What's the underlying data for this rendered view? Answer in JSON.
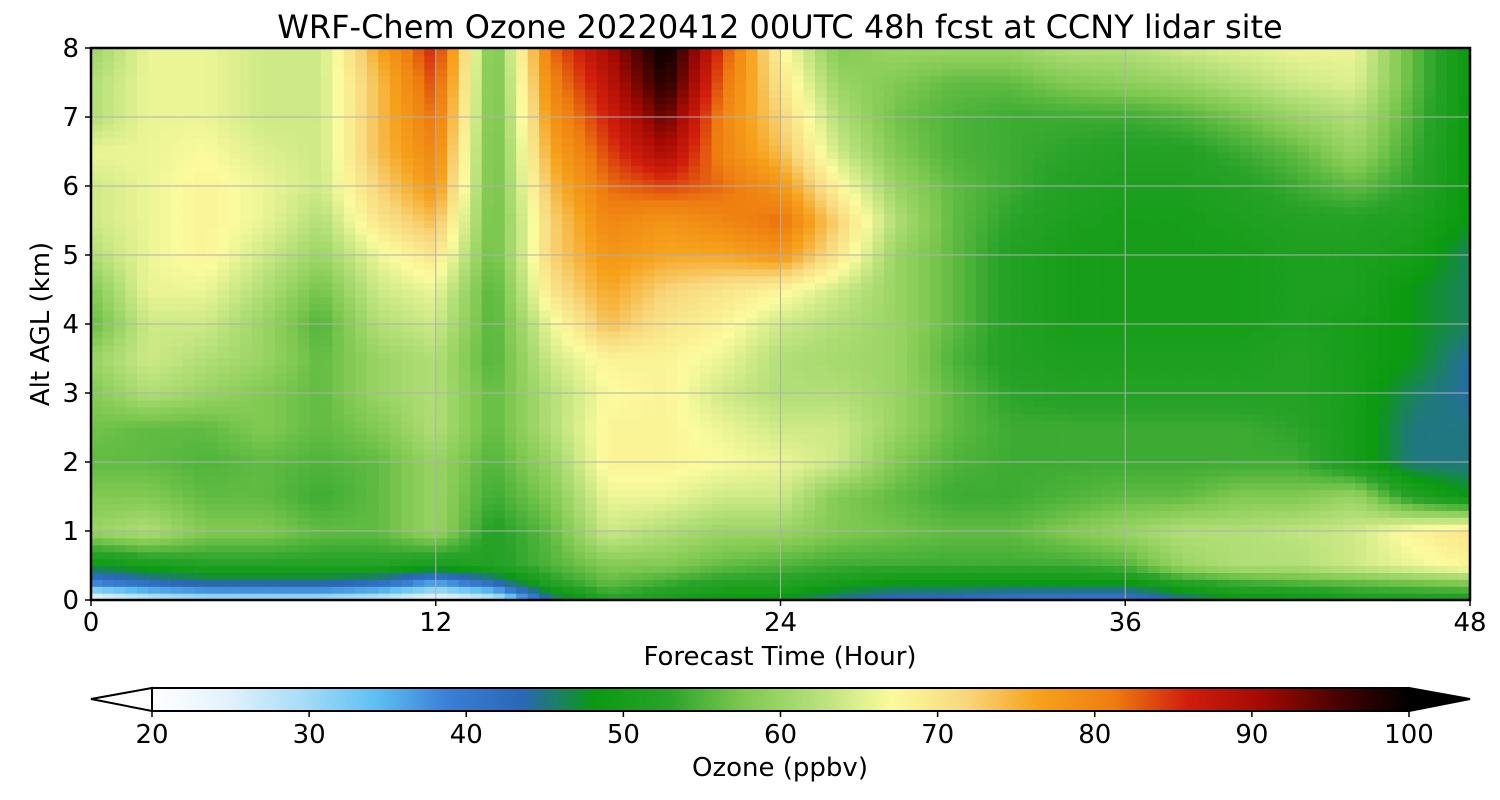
{
  "chart_data": {
    "type": "heatmap",
    "title": "WRF-Chem Ozone  20220412 00UTC 48h fcst at CCNY lidar site",
    "xlabel": "Forecast Time (Hour)",
    "ylabel": "Alt AGL (km)",
    "xlim": [
      0,
      48
    ],
    "ylim": [
      0,
      8
    ],
    "x_ticks": [
      "0",
      "12",
      "24",
      "36",
      "48"
    ],
    "y_ticks": [
      "0",
      "1",
      "2",
      "3",
      "4",
      "5",
      "6",
      "7",
      "8"
    ],
    "grid": true,
    "x": [
      0,
      2,
      4,
      6,
      8,
      10,
      12,
      14,
      16,
      18,
      20,
      22,
      24,
      26,
      28,
      30,
      32,
      34,
      36,
      38,
      40,
      42,
      44,
      46,
      48
    ],
    "y": [
      0,
      0.25,
      0.5,
      1,
      1.5,
      2,
      2.5,
      3,
      3.5,
      4,
      4.5,
      5,
      5.5,
      6,
      6.5,
      7,
      7.5,
      8
    ],
    "z": [
      [
        22,
        26,
        28,
        28,
        28,
        26,
        22,
        26,
        44,
        52,
        50,
        48,
        48,
        44,
        42,
        42,
        40,
        40,
        40,
        44,
        48,
        48,
        50,
        50,
        50
      ],
      [
        38,
        42,
        44,
        44,
        44,
        42,
        36,
        42,
        52,
        56,
        54,
        52,
        52,
        50,
        48,
        48,
        48,
        48,
        48,
        52,
        54,
        55,
        56,
        57,
        58
      ],
      [
        48,
        50,
        52,
        52,
        52,
        52,
        50,
        52,
        55,
        58,
        58,
        56,
        55,
        54,
        54,
        54,
        54,
        54,
        55,
        60,
        62,
        62,
        64,
        66,
        68
      ],
      [
        60,
        62,
        58,
        58,
        56,
        56,
        60,
        52,
        56,
        64,
        62,
        60,
        60,
        58,
        57,
        56,
        56,
        58,
        60,
        62,
        62,
        63,
        64,
        68,
        70
      ],
      [
        58,
        58,
        56,
        56,
        54,
        56,
        60,
        54,
        58,
        66,
        66,
        64,
        64,
        58,
        56,
        54,
        54,
        55,
        56,
        56,
        58,
        58,
        60,
        52,
        48
      ],
      [
        56,
        56,
        55,
        56,
        55,
        56,
        60,
        55,
        60,
        68,
        68,
        67,
        66,
        64,
        58,
        55,
        54,
        54,
        54,
        54,
        54,
        54,
        50,
        45,
        45
      ],
      [
        57,
        56,
        56,
        58,
        56,
        58,
        62,
        56,
        62,
        68,
        68,
        66,
        64,
        64,
        60,
        56,
        54,
        54,
        54,
        54,
        54,
        53,
        50,
        45,
        45
      ],
      [
        58,
        62,
        60,
        58,
        56,
        60,
        62,
        56,
        62,
        67,
        68,
        64,
        62,
        62,
        60,
        56,
        53,
        52,
        52,
        52,
        52,
        52,
        50,
        46,
        44
      ],
      [
        60,
        64,
        62,
        60,
        56,
        60,
        62,
        55,
        64,
        68,
        68,
        66,
        62,
        61,
        60,
        55,
        52,
        51,
        51,
        51,
        51,
        52,
        50,
        48,
        44
      ],
      [
        56,
        64,
        64,
        60,
        55,
        62,
        64,
        55,
        66,
        74,
        70,
        68,
        64,
        62,
        60,
        56,
        52,
        50,
        50,
        50,
        50,
        51,
        50,
        48,
        46
      ],
      [
        58,
        66,
        66,
        62,
        57,
        64,
        66,
        55,
        70,
        76,
        72,
        70,
        68,
        64,
        60,
        56,
        52,
        50,
        50,
        50,
        50,
        51,
        51,
        48,
        46
      ],
      [
        62,
        66,
        68,
        64,
        60,
        66,
        70,
        56,
        72,
        78,
        76,
        76,
        78,
        70,
        60,
        56,
        52,
        50,
        50,
        50,
        50,
        51,
        51,
        50,
        46
      ],
      [
        64,
        66,
        68,
        66,
        62,
        70,
        74,
        56,
        72,
        80,
        78,
        80,
        82,
        72,
        62,
        56,
        53,
        51,
        50,
        50,
        51,
        52,
        52,
        51,
        48
      ],
      [
        64,
        66,
        68,
        66,
        64,
        72,
        78,
        56,
        74,
        82,
        84,
        82,
        78,
        68,
        60,
        56,
        54,
        52,
        51,
        51,
        52,
        54,
        56,
        53,
        48
      ],
      [
        66,
        66,
        67,
        65,
        64,
        74,
        80,
        56,
        76,
        84,
        90,
        80,
        74,
        64,
        58,
        55,
        54,
        53,
        52,
        52,
        54,
        56,
        60,
        54,
        48
      ],
      [
        62,
        66,
        66,
        64,
        64,
        74,
        82,
        56,
        78,
        86,
        94,
        80,
        72,
        62,
        57,
        55,
        54,
        54,
        54,
        55,
        57,
        60,
        62,
        55,
        48
      ],
      [
        62,
        66,
        66,
        64,
        64,
        74,
        84,
        56,
        80,
        88,
        98,
        82,
        70,
        60,
        58,
        56,
        56,
        58,
        59,
        60,
        62,
        64,
        65,
        56,
        48
      ],
      [
        60,
        66,
        66,
        64,
        64,
        76,
        86,
        56,
        82,
        90,
        100,
        84,
        68,
        58,
        60,
        60,
        60,
        62,
        62,
        64,
        65,
        66,
        66,
        56,
        48
      ]
    ],
    "colorbar": {
      "label": "Ozone  (ppbv)",
      "min": 20,
      "max": 100,
      "ticks": [
        "20",
        "30",
        "40",
        "50",
        "60",
        "70",
        "80",
        "90",
        "100"
      ],
      "extend": "both",
      "colors": [
        "#ffffff",
        "#e3f2fb",
        "#a9ddf7",
        "#5fc1f3",
        "#3a7fd6",
        "#2a67b5",
        "#0b9a10",
        "#2aa32a",
        "#7ec850",
        "#b6e07a",
        "#fbfb9e",
        "#f8d77c",
        "#f6a11b",
        "#ee7d10",
        "#d11e0d",
        "#a30a03",
        "#4a0302",
        "#000000"
      ]
    }
  }
}
